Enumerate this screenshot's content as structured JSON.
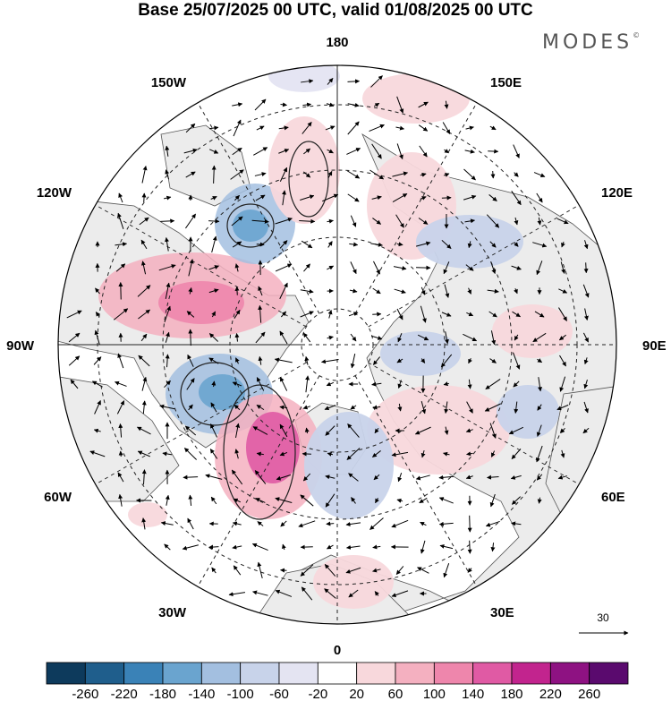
{
  "title": "Base 25/07/2025 00 UTC, valid 01/08/2025 00 UTC",
  "brand": "MODES",
  "brand_mark": "©",
  "longitude_labels": {
    "top": "180",
    "bottom": "0",
    "left": "90W",
    "right": "90E",
    "upper_left_1": "150W",
    "upper_left_2": "120W",
    "lower_left_1": "60W",
    "lower_left_2": "30W",
    "upper_right_1": "150E",
    "upper_right_2": "120E",
    "lower_right_1": "60E",
    "lower_right_2": "30E"
  },
  "reference_vector": {
    "label": "30"
  },
  "colorbar": {
    "ticks": [
      "-260",
      "-220",
      "-180",
      "-140",
      "-100",
      "-60",
      "-20",
      "20",
      "60",
      "100",
      "140",
      "180",
      "220",
      "260"
    ],
    "colors": [
      "#0d3a5c",
      "#1f5e8c",
      "#3a82b7",
      "#6aa4cf",
      "#a3bfe0",
      "#c8d3ea",
      "#e4e4f2",
      "#ffffff",
      "#f8d8dc",
      "#f4b0c0",
      "#ee86ac",
      "#e05aa4",
      "#c2248e",
      "#8e1282",
      "#5a0a6e"
    ]
  },
  "colors": {
    "land": "#ececec",
    "ocean": "#ffffff",
    "coast": "#444444",
    "grid": "#222222"
  }
}
